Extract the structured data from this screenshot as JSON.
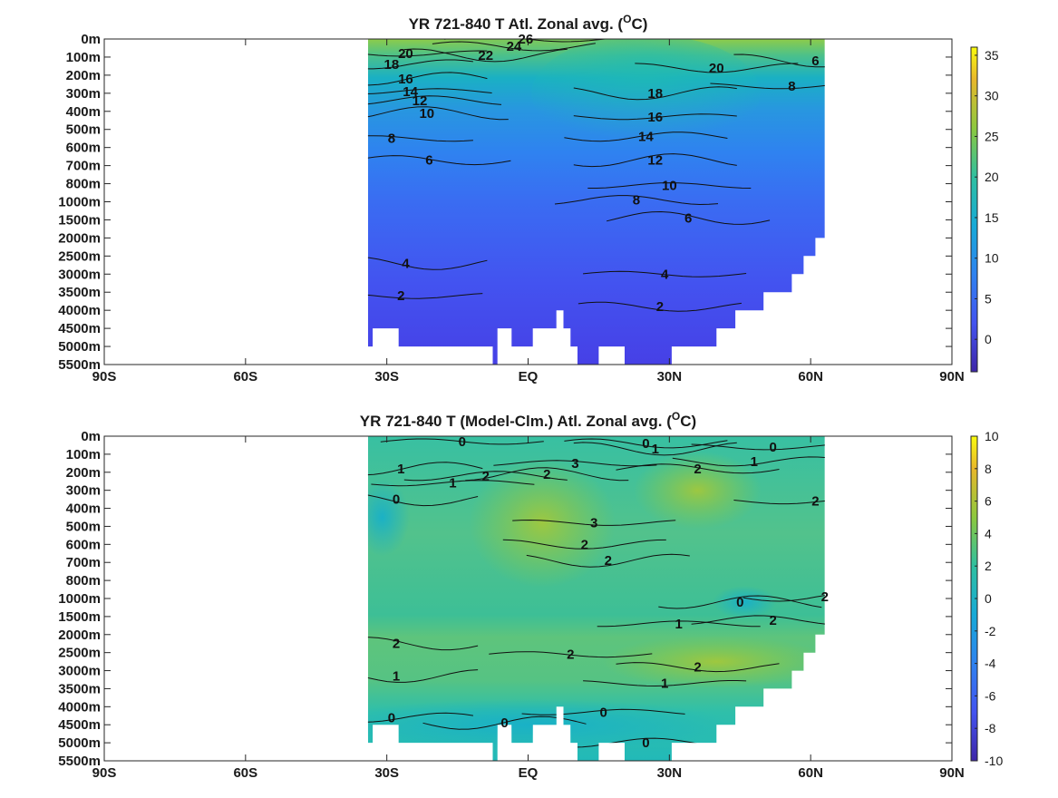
{
  "chart_data": [
    {
      "type": "heatmap",
      "title": "YR 721-840 T Atl. Zonal avg. (",
      "title_sup": "O",
      "title_end": "C)",
      "x_ticks": [
        "90S",
        "60S",
        "30S",
        "EQ",
        "30N",
        "60N",
        "90N"
      ],
      "x_values": [
        -90,
        -60,
        -30,
        0,
        30,
        60,
        90
      ],
      "y_ticks": [
        "0m",
        "100m",
        "200m",
        "300m",
        "400m",
        "500m",
        "600m",
        "700m",
        "800m",
        "1000m",
        "1500m",
        "2000m",
        "2500m",
        "3000m",
        "3500m",
        "4000m",
        "4500m",
        "5000m",
        "5500m"
      ],
      "xlim": [
        -90,
        90
      ],
      "colorbar": {
        "ticks": [
          "35",
          "30",
          "25",
          "20",
          "15",
          "10",
          "5",
          "0"
        ],
        "values": [
          35,
          30,
          25,
          20,
          15,
          10,
          5,
          0
        ],
        "range": [
          -4,
          36
        ]
      },
      "data_extent_lat": [
        -34,
        63
      ],
      "contours": [
        {
          "label": "26",
          "value": 26,
          "lat": -0.5,
          "level": 0
        },
        {
          "label": "24",
          "value": 24,
          "lat": -3,
          "level": 0.4
        },
        {
          "label": "22",
          "value": 22,
          "lat": -9,
          "level": 0.9
        },
        {
          "label": "20",
          "value": 20,
          "lat": -26,
          "level": 0.8
        },
        {
          "label": "18",
          "value": 18,
          "lat": -29,
          "level": 1.4
        },
        {
          "label": "16",
          "value": 16,
          "lat": -26,
          "level": 2.2
        },
        {
          "label": "14",
          "value": 14,
          "lat": -25,
          "level": 2.9
        },
        {
          "label": "12",
          "value": 12,
          "lat": -23,
          "level": 3.4
        },
        {
          "label": "10",
          "value": 10,
          "lat": -21.5,
          "level": 4.1
        },
        {
          "label": "8",
          "value": 8,
          "lat": -29,
          "level": 5.5
        },
        {
          "label": "6",
          "value": 6,
          "lat": -21,
          "level": 6.7
        },
        {
          "label": "4",
          "value": 4,
          "lat": -26,
          "level": 12.4
        },
        {
          "label": "2",
          "value": 2,
          "lat": -27,
          "level": 14.2
        },
        {
          "label": "20",
          "value": 20,
          "lat": 40,
          "level": 1.6
        },
        {
          "label": "18",
          "value": 18,
          "lat": 27,
          "level": 3.0
        },
        {
          "label": "16",
          "value": 16,
          "lat": 27,
          "level": 4.3
        },
        {
          "label": "14",
          "value": 14,
          "lat": 25,
          "level": 5.4
        },
        {
          "label": "12",
          "value": 12,
          "lat": 27,
          "level": 6.7
        },
        {
          "label": "10",
          "value": 10,
          "lat": 30,
          "level": 8.1
        },
        {
          "label": "8",
          "value": 8,
          "lat": 23,
          "level": 8.9
        },
        {
          "label": "6",
          "value": 6,
          "lat": 34,
          "level": 9.9
        },
        {
          "label": "4",
          "value": 4,
          "lat": 29,
          "level": 13.0
        },
        {
          "label": "2",
          "value": 2,
          "lat": 28,
          "level": 14.8
        },
        {
          "label": "6",
          "value": 6,
          "lat": 61,
          "level": 1.2
        },
        {
          "label": "8",
          "value": 8,
          "lat": 56,
          "level": 2.6
        }
      ]
    },
    {
      "type": "heatmap",
      "title": "YR 721-840 T (Model-Clm.) Atl. Zonal avg. (",
      "title_sup": "O",
      "title_end": "C)",
      "x_ticks": [
        "90S",
        "60S",
        "30S",
        "EQ",
        "30N",
        "60N",
        "90N"
      ],
      "x_values": [
        -90,
        -60,
        -30,
        0,
        30,
        60,
        90
      ],
      "y_ticks": [
        "0m",
        "100m",
        "200m",
        "300m",
        "400m",
        "500m",
        "600m",
        "700m",
        "800m",
        "1000m",
        "1500m",
        "2000m",
        "2500m",
        "3000m",
        "3500m",
        "4000m",
        "4500m",
        "5000m",
        "5500m"
      ],
      "xlim": [
        -90,
        90
      ],
      "colorbar": {
        "ticks": [
          "10",
          "8",
          "6",
          "4",
          "2",
          "0",
          "-2",
          "-4",
          "-6",
          "-8",
          "-10"
        ],
        "values": [
          10,
          8,
          6,
          4,
          2,
          0,
          -2,
          -4,
          -6,
          -8,
          -10
        ],
        "range": [
          -10,
          10
        ]
      },
      "data_extent_lat": [
        -34,
        63
      ],
      "contours": [
        {
          "label": "0",
          "value": 0,
          "lat": -14,
          "level": 0.3
        },
        {
          "label": "0",
          "value": 0,
          "lat": 25,
          "level": 0.4
        },
        {
          "label": "1",
          "value": 1,
          "lat": 27,
          "level": 0.7
        },
        {
          "label": "0",
          "value": 0,
          "lat": 52,
          "level": 0.6
        },
        {
          "label": "1",
          "value": 1,
          "lat": 48,
          "level": 1.4
        },
        {
          "label": "1",
          "value": 1,
          "lat": -27,
          "level": 1.8
        },
        {
          "label": "1",
          "value": 1,
          "lat": -16,
          "level": 2.6
        },
        {
          "label": "2",
          "value": 2,
          "lat": -9,
          "level": 2.2
        },
        {
          "label": "2",
          "value": 2,
          "lat": 4,
          "level": 2.1
        },
        {
          "label": "3",
          "value": 3,
          "lat": 10,
          "level": 1.5
        },
        {
          "label": "2",
          "value": 2,
          "lat": 36,
          "level": 1.8
        },
        {
          "label": "0",
          "value": 0,
          "lat": -28,
          "level": 3.5
        },
        {
          "label": "3",
          "value": 3,
          "lat": 14,
          "level": 4.8
        },
        {
          "label": "2",
          "value": 2,
          "lat": 12,
          "level": 6.0
        },
        {
          "label": "2",
          "value": 2,
          "lat": 17,
          "level": 6.9
        },
        {
          "label": "2",
          "value": 2,
          "lat": 61,
          "level": 3.6
        },
        {
          "label": "2",
          "value": 2,
          "lat": 63,
          "level": 8.9
        },
        {
          "label": "0",
          "value": 0,
          "lat": 45,
          "level": 9.2
        },
        {
          "label": "1",
          "value": 1,
          "lat": 32,
          "level": 10.4
        },
        {
          "label": "2",
          "value": 2,
          "lat": 52,
          "level": 10.2
        },
        {
          "label": "2",
          "value": 2,
          "lat": -28,
          "level": 11.5
        },
        {
          "label": "2",
          "value": 2,
          "lat": 9,
          "level": 12.1
        },
        {
          "label": "2",
          "value": 2,
          "lat": 36,
          "level": 12.8
        },
        {
          "label": "1",
          "value": 1,
          "lat": -28,
          "level": 13.3
        },
        {
          "label": "1",
          "value": 1,
          "lat": 29,
          "level": 13.7
        },
        {
          "label": "0",
          "value": 0,
          "lat": -29,
          "level": 15.6
        },
        {
          "label": "0",
          "value": 0,
          "lat": -5,
          "level": 15.9
        },
        {
          "label": "0",
          "value": 0,
          "lat": 16,
          "level": 15.3
        },
        {
          "label": "0",
          "value": 0,
          "lat": 25,
          "level": 17.0
        }
      ]
    }
  ]
}
